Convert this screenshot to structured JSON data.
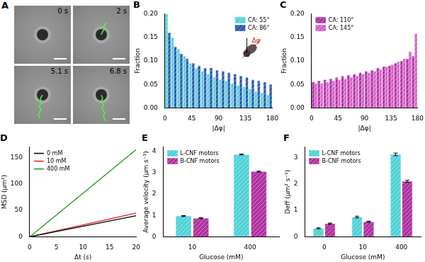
{
  "panel_a": {
    "title": "A",
    "frames": [
      "0 s",
      "2 s",
      "5.1 s",
      "6.8 s"
    ]
  },
  "chart_data": [
    {
      "type": "histogram",
      "title": "B",
      "x_label": "|Δφ|",
      "y_label": "Fraction",
      "bins": [
        0,
        10,
        20,
        30,
        40,
        50,
        60,
        70,
        80,
        90,
        100,
        110,
        120,
        130,
        140,
        150,
        160,
        170,
        180
      ],
      "series": [
        {
          "name": "CA: 55°",
          "color": "#4fd2d8",
          "values": [
            0.2,
            0.15,
            0.125,
            0.11,
            0.095,
            0.085,
            0.078,
            0.072,
            0.065,
            0.06,
            0.058,
            0.052,
            0.048,
            0.045,
            0.04,
            0.035,
            0.032,
            0.028
          ]
        },
        {
          "name": "CA: 86°",
          "color": "#2b56b0",
          "values": [
            0.16,
            0.13,
            0.115,
            0.105,
            0.095,
            0.09,
            0.085,
            0.085,
            0.08,
            0.078,
            0.075,
            0.072,
            0.068,
            0.065,
            0.06,
            0.058,
            0.055,
            0.05
          ]
        }
      ],
      "xlim": [
        0,
        180
      ],
      "xticks": [
        0,
        45,
        90,
        135,
        180
      ],
      "ylim": [
        0,
        0.2
      ],
      "yticks": [
        {
          "value": 0,
          "label": "0.00"
        },
        {
          "value": 0.05,
          "label": "0.05"
        },
        {
          "value": 0.1,
          "label": "0.10"
        },
        {
          "value": 0.15,
          "label": "0.15"
        },
        {
          "value": 0.2,
          "label": "0.20"
        }
      ],
      "grid": false,
      "legend": "upper right",
      "annotations": [
        "Δφ"
      ]
    },
    {
      "type": "histogram",
      "title": "C",
      "x_label": "|Δφ|",
      "y_label": "Fraction",
      "bins": [
        0,
        10,
        20,
        30,
        40,
        50,
        60,
        70,
        80,
        90,
        100,
        110,
        120,
        130,
        140,
        150,
        160,
        170,
        180
      ],
      "series": [
        {
          "name": "CA: 110°",
          "color": "#b0309f",
          "values": [
            0.055,
            0.058,
            0.06,
            0.062,
            0.065,
            0.068,
            0.07,
            0.072,
            0.075,
            0.078,
            0.08,
            0.085,
            0.088,
            0.09,
            0.095,
            0.1,
            0.105,
            0.11
          ]
        },
        {
          "name": "CA: 145°",
          "color": "#d55ccb",
          "values": [
            0.052,
            0.052,
            0.055,
            0.058,
            0.06,
            0.062,
            0.065,
            0.068,
            0.072,
            0.075,
            0.078,
            0.082,
            0.088,
            0.092,
            0.098,
            0.105,
            0.12,
            0.158
          ]
        }
      ],
      "xlim": [
        0,
        180
      ],
      "xticks": [
        0,
        45,
        90,
        135,
        180
      ],
      "ylim": [
        0,
        0.2
      ],
      "yticks": [
        {
          "value": 0,
          "label": "0.00"
        },
        {
          "value": 0.05,
          "label": "0.05"
        },
        {
          "value": 0.1,
          "label": "0.10"
        },
        {
          "value": 0.15,
          "label": "0.15"
        },
        {
          "value": 0.2,
          "label": "0.20"
        }
      ],
      "grid": false,
      "legend": "upper left"
    },
    {
      "type": "line",
      "title": "D",
      "x_label": "Δt (s)",
      "y_label": "MSD (μm²)",
      "x": [
        0,
        20
      ],
      "series": [
        {
          "name": "0 mM",
          "color": "#000000",
          "values": [
            0,
            40
          ]
        },
        {
          "name": "10 mM",
          "color": "#e02020",
          "values": [
            0,
            45
          ]
        },
        {
          "name": "400 mM",
          "color": "#1a9a1a",
          "values": [
            0,
            165
          ]
        }
      ],
      "xlim": [
        0,
        20
      ],
      "xticks": [
        0,
        5,
        10,
        15,
        20
      ],
      "ylim": [
        0,
        170
      ],
      "yticks": [
        0,
        50,
        100,
        150
      ],
      "grid": false,
      "legend": "upper left"
    },
    {
      "type": "bar",
      "title": "E",
      "x_label": "Glucose (mM)",
      "y_label": "Average velocity (μm s⁻¹)",
      "categories": [
        "10",
        "400"
      ],
      "series": [
        {
          "name": "L-CNF motors",
          "color": "#4fd2d8",
          "values": [
            0.97,
            3.85
          ],
          "errors": [
            0.02,
            0.02
          ]
        },
        {
          "name": "B-CNF motors",
          "color": "#b0309f",
          "values": [
            0.87,
            3.05
          ],
          "errors": [
            0.02,
            0.02
          ]
        }
      ],
      "ylim": [
        0,
        4.2
      ],
      "yticks": [
        0,
        1,
        2,
        3,
        4
      ],
      "grid": false,
      "legend": "upper left"
    },
    {
      "type": "bar",
      "title": "F",
      "x_label": "Glucose (mM)",
      "y_label": "Deff (μm² s⁻¹)",
      "categories": [
        "0",
        "10",
        "400"
      ],
      "series": [
        {
          "name": "L-CNF motors",
          "color": "#4fd2d8",
          "values": [
            0.32,
            0.75,
            3.12
          ],
          "errors": [
            0.02,
            0.03,
            0.05
          ]
        },
        {
          "name": "B-CNF motors",
          "color": "#b0309f",
          "values": [
            0.5,
            0.57,
            2.1
          ],
          "errors": [
            0.02,
            0.02,
            0.04
          ]
        }
      ],
      "ylim": [
        0,
        3.4
      ],
      "yticks": [
        0,
        1,
        2,
        3
      ],
      "grid": false,
      "legend": "upper left"
    }
  ]
}
